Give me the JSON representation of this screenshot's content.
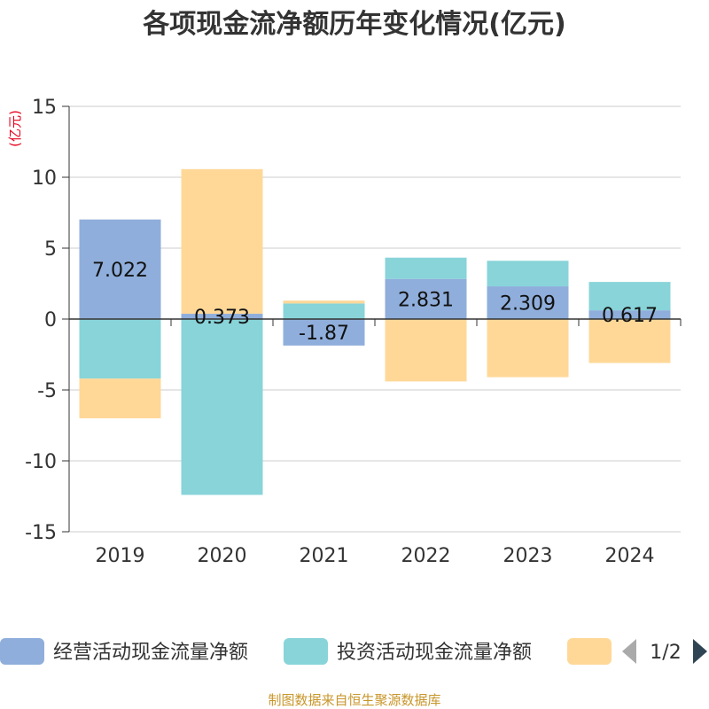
{
  "chart_data": {
    "type": "bar",
    "stacked": true,
    "title": "各项现金流净额历年变化情况(亿元)",
    "ylabel": "(亿元)",
    "ylim": [
      -15,
      15
    ],
    "yticks": [
      15,
      10,
      5,
      0,
      -5,
      -10,
      -15
    ],
    "grid": true,
    "categories": [
      "2019",
      "2020",
      "2021",
      "2022",
      "2023",
      "2024"
    ],
    "series": [
      {
        "name": "经营活动现金流量净额",
        "color": "#8FAEDB",
        "values": [
          7.022,
          0.373,
          -1.87,
          2.831,
          2.309,
          0.617
        ],
        "labels": [
          "7.022",
          "0.373",
          "-1.87",
          "2.831",
          "2.309",
          "0.617"
        ]
      },
      {
        "name": "投资活动现金流量净额",
        "color": "#88D4D9",
        "values": [
          -4.2,
          -12.4,
          1.1,
          1.5,
          1.8,
          2.0
        ],
        "labels": []
      },
      {
        "name": "",
        "color": "#FFD898",
        "values": [
          -2.8,
          10.2,
          0.2,
          -4.4,
          -4.1,
          -3.1
        ],
        "labels": []
      }
    ],
    "legend": {
      "position": "bottom",
      "page": "1/2"
    }
  },
  "source": "制图数据来自恒生聚源数据库",
  "colors": {
    "axis_label": "#E8001C",
    "source_text": "#C8962A",
    "nav_inactive": "#AAAAAA",
    "nav_active": "#2F4554"
  },
  "icons": {
    "prev": "triangle-left-icon",
    "next": "triangle-right-icon"
  }
}
